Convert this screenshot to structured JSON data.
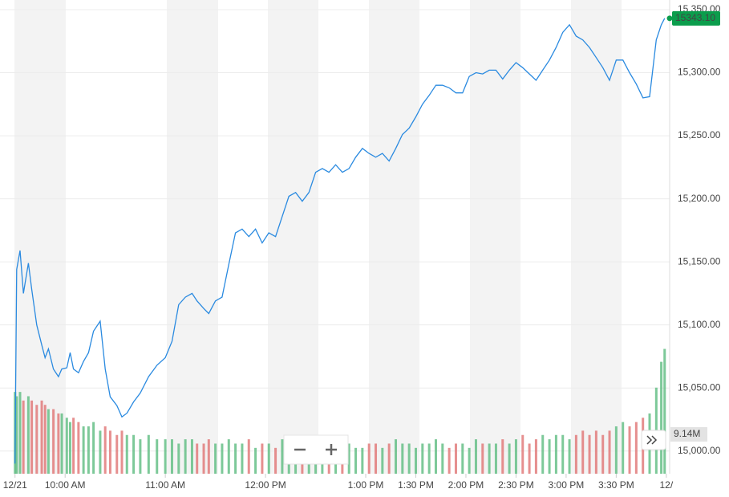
{
  "chart_data": {
    "type": "line",
    "color": "#2a8ae0",
    "grid": true,
    "x": [
      0,
      1,
      3,
      5,
      8,
      10,
      13,
      16,
      18,
      20,
      23,
      26,
      28,
      31,
      33,
      35,
      38,
      41,
      44,
      47,
      51,
      54,
      57,
      61,
      64,
      67,
      71,
      75,
      80,
      85,
      90,
      94,
      98,
      102,
      106,
      109,
      113,
      116,
      120,
      124,
      128,
      132,
      136,
      140,
      144,
      148,
      152,
      156,
      160,
      164,
      168,
      172,
      176,
      180,
      184,
      188,
      192,
      196,
      200,
      204,
      208,
      212,
      216,
      220,
      224,
      228,
      232,
      236,
      240,
      244,
      248,
      252,
      256,
      260,
      264,
      268,
      272,
      276,
      280,
      284,
      288,
      292,
      296,
      300,
      304,
      308,
      312,
      316,
      320,
      324,
      328,
      332,
      336,
      340,
      344,
      348,
      352,
      356,
      360,
      364,
      368,
      372,
      376,
      380,
      384,
      387,
      389
    ],
    "values": [
      14990,
      15144,
      15159,
      15125,
      15149,
      15128,
      15100,
      15084,
      15074,
      15081,
      15065,
      15059,
      15065,
      15066,
      15078,
      15065,
      15062,
      15071,
      15078,
      15095,
      15103,
      15065,
      15043,
      15036,
      15027,
      15030,
      15039,
      15046,
      15059,
      15068,
      15074,
      15087,
      15116,
      15122,
      15125,
      15119,
      15113,
      15109,
      15119,
      15122,
      15148,
      15173,
      15176,
      15170,
      15176,
      15165,
      15173,
      15170,
      15186,
      15202,
      15205,
      15198,
      15205,
      15221,
      15224,
      15221,
      15227,
      15221,
      15224,
      15233,
      15240,
      15236,
      15233,
      15236,
      15230,
      15240,
      15251,
      15256,
      15265,
      15275,
      15282,
      15290,
      15290,
      15288,
      15284,
      15284,
      15297,
      15300,
      15299,
      15302,
      15302,
      15295,
      15302,
      15308,
      15304,
      15299,
      15294,
      15302,
      15310,
      15320,
      15332,
      15338,
      15329,
      15326,
      15320,
      15312,
      15304,
      15294,
      15310,
      15310,
      15300,
      15291,
      15280,
      15281,
      15326,
      15338,
      15343.1
    ],
    "xlim": [
      -9,
      392
    ],
    "xticks": [
      {
        "value": 0,
        "label": "12/21"
      },
      {
        "value": 30,
        "label": "10:00 AM"
      },
      {
        "value": 90,
        "label": "11:00 AM"
      },
      {
        "value": 150,
        "label": "12:00 PM"
      },
      {
        "value": 210,
        "label": "1:00 PM"
      },
      {
        "value": 240,
        "label": "1:30 PM"
      },
      {
        "value": 270,
        "label": "2:00 PM"
      },
      {
        "value": 300,
        "label": "2:30 PM"
      },
      {
        "value": 330,
        "label": "3:00 PM"
      },
      {
        "value": 360,
        "label": "3:30 PM"
      },
      {
        "value": 390,
        "label": "12/"
      }
    ],
    "ylim": [
      14982,
      15350
    ],
    "yticks": [
      {
        "value": 15000,
        "label": "15,000.00"
      },
      {
        "value": 15050,
        "label": "15,050.00"
      },
      {
        "value": 15100,
        "label": "15,100.00"
      },
      {
        "value": 15150,
        "label": "15,150.00"
      },
      {
        "value": 15200,
        "label": "15,200.00"
      },
      {
        "value": 15250,
        "label": "15,250.00"
      },
      {
        "value": 15300,
        "label": "15,300.00"
      },
      {
        "value": 15350,
        "label": "15,350.00"
      }
    ],
    "last": {
      "value": 15343.1,
      "label": "15343.10",
      "color": "#0b9d4c"
    },
    "volume": {
      "up_color": "#5dbb7f",
      "down_color": "#e07373",
      "marker": {
        "value": 9.14,
        "label": "9.14M"
      },
      "values": [
        19,
        18,
        19,
        17,
        18,
        17,
        16,
        17,
        16,
        15,
        15,
        14,
        14,
        13,
        12,
        13,
        12,
        11,
        11,
        12,
        10,
        11,
        10,
        9,
        10,
        9,
        9,
        8,
        9,
        8,
        8,
        8,
        7,
        8,
        8,
        7,
        7,
        8,
        7,
        7,
        8,
        7,
        7,
        8,
        6,
        7,
        7,
        6,
        8,
        7,
        7,
        6,
        7,
        6,
        7,
        6,
        7,
        8,
        7,
        6,
        6,
        7,
        7,
        6,
        7,
        8,
        7,
        7,
        6,
        7,
        7,
        8,
        7,
        6,
        7,
        7,
        6,
        8,
        7,
        7,
        7,
        8,
        7,
        8,
        9,
        7,
        8,
        9,
        8,
        9,
        9,
        8,
        9,
        10,
        9,
        10,
        9,
        10,
        11,
        12,
        11,
        12,
        13,
        14,
        20,
        26,
        29
      ]
    }
  }
}
